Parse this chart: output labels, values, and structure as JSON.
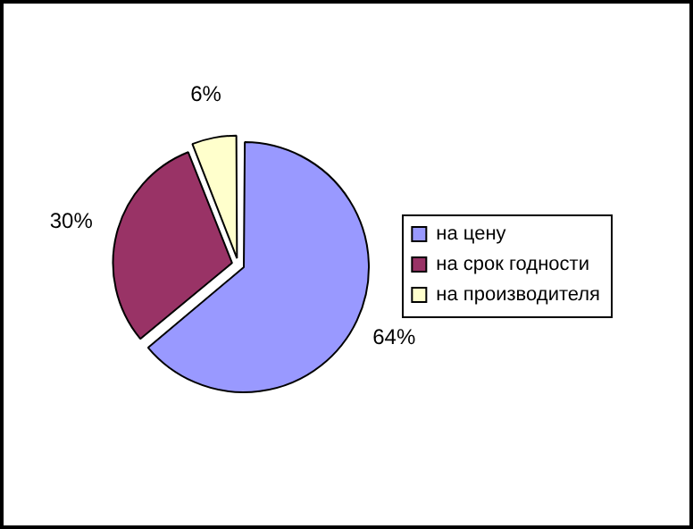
{
  "chart_data": {
    "type": "pie",
    "categories": [
      "на цену",
      "на срок годности",
      "на производителя"
    ],
    "values": [
      64,
      30,
      6
    ],
    "colors": [
      "#9999ff",
      "#993366",
      "#ffffcc"
    ],
    "value_labels": [
      "64%",
      "30%",
      "6%"
    ],
    "legend": "right"
  }
}
